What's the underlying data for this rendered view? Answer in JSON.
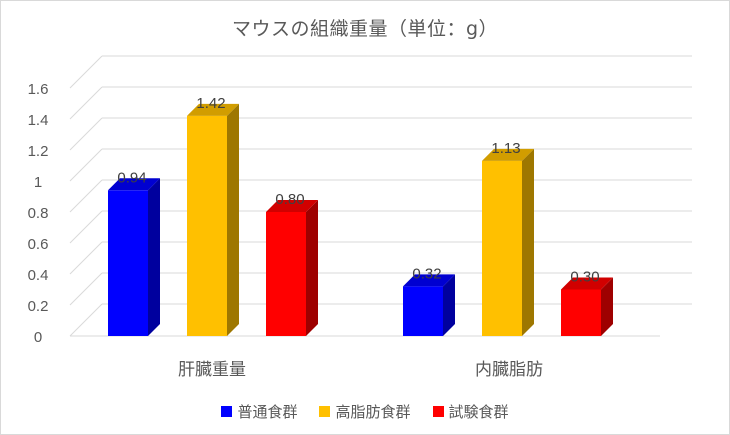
{
  "chart_data": {
    "type": "bar",
    "title": "マウスの組織重量（単位：g）",
    "categories": [
      "肝臓重量",
      "内臓脂肪"
    ],
    "series": [
      {
        "name": "普通食群",
        "values": [
          0.94,
          0.32
        ],
        "labels": [
          "0.94",
          "0.32"
        ],
        "color": "#0000ff"
      },
      {
        "name": "高脂肪食群",
        "values": [
          1.42,
          1.13
        ],
        "labels": [
          "1.42",
          "1.13"
        ],
        "color": "#ffc000"
      },
      {
        "name": "試験食群",
        "values": [
          0.8,
          0.3
        ],
        "labels": [
          "0.80",
          "0.30"
        ],
        "color": "#ff0000"
      }
    ],
    "ylim": [
      0,
      1.6
    ],
    "yticks": [
      "0",
      "0.2",
      "0.4",
      "0.6",
      "0.8",
      "1",
      "1.2",
      "1.4",
      "1.6"
    ],
    "xlabel": "",
    "ylabel": "",
    "grid": true,
    "legend_position": "bottom",
    "style": "3d-column"
  }
}
